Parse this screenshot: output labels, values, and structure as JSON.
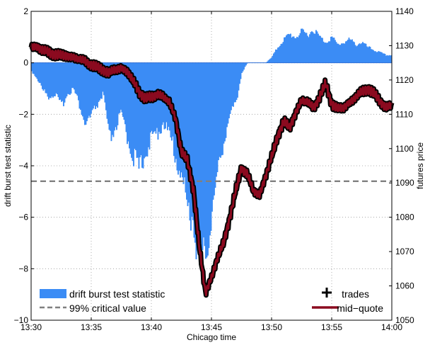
{
  "chart_data": {
    "type": "area",
    "xlabel": "Chicago time",
    "ylabel_left": "drift burst test statistic",
    "ylabel_right": "futures price",
    "x_ticks": [
      "13:30",
      "13:35",
      "13:40",
      "13:45",
      "13:50",
      "13:55",
      "14:00"
    ],
    "x_range_minutes": [
      0,
      30
    ],
    "y_left_ticks": [
      2,
      0,
      -2,
      -4,
      -6,
      -8,
      -10
    ],
    "y_left_range": [
      -10,
      2
    ],
    "y_right_ticks": [
      1140,
      1130,
      1120,
      1110,
      1100,
      1090,
      1080,
      1070,
      1060,
      1050
    ],
    "y_right_range": [
      1050,
      1140
    ],
    "grid": true,
    "legend_left": "bottom-left",
    "legend_right": "bottom-right",
    "critical_value": -4.6,
    "series": [
      {
        "name": "drift burst test statistic",
        "axis": "left",
        "color": "#3b8cf5",
        "x": [
          0,
          0.5,
          1,
          1.5,
          2,
          2.5,
          3,
          3.5,
          4,
          4.5,
          5,
          5.5,
          6,
          6.5,
          7,
          7.5,
          8,
          8.5,
          9,
          9.5,
          10,
          10.5,
          11,
          11.5,
          12,
          12.5,
          13,
          13.5,
          14,
          14.5,
          15,
          15.5,
          16,
          16.5,
          17,
          17.5,
          18,
          18.5,
          19,
          19.5,
          20,
          20.5,
          21,
          21.5,
          22,
          22.5,
          23,
          23.5,
          24,
          24.5,
          25,
          25.5,
          26,
          26.5,
          27,
          27.5,
          28,
          28.5,
          29,
          29.5,
          30
        ],
        "values": [
          -0.3,
          -0.6,
          -1.1,
          -1.3,
          -1.2,
          -1.7,
          -1.2,
          -1.0,
          -1.6,
          -2.4,
          -2.1,
          -1.6,
          -1.2,
          -3.0,
          -2.5,
          -2.0,
          -2.9,
          -3.6,
          -4.2,
          -3.4,
          -3.0,
          -2.7,
          -2.3,
          -2.8,
          -3.6,
          -4.4,
          -5.6,
          -6.1,
          -7.9,
          -7.5,
          -5.9,
          -4.4,
          -3.0,
          -2.1,
          -1.6,
          -0.4,
          0.0,
          0.0,
          0.0,
          0.0,
          0.2,
          0.6,
          0.9,
          1.1,
          1.0,
          1.2,
          1.1,
          1.3,
          1.0,
          0.8,
          1.0,
          0.7,
          0.8,
          0.9,
          0.7,
          0.8,
          0.6,
          0.5,
          0.4,
          0.3,
          0.3
        ]
      },
      {
        "name": "99% critical value",
        "axis": "left",
        "color": "#808080",
        "values": [
          -4.6,
          -4.6
        ]
      },
      {
        "name": "trades",
        "axis": "right",
        "color": "#000000"
      },
      {
        "name": "mid−quote",
        "axis": "right",
        "color": "#8b0a1f",
        "x": [
          0,
          0.5,
          1,
          1.5,
          2,
          2.5,
          3,
          3.5,
          4,
          4.5,
          5,
          5.5,
          6,
          6.5,
          7,
          7.5,
          8,
          8.5,
          9,
          9.5,
          10,
          10.5,
          11,
          11.5,
          12,
          12.5,
          13,
          13.5,
          14,
          14.5,
          15,
          15.5,
          16,
          16.5,
          17,
          17.5,
          18,
          18.5,
          19,
          19.5,
          20,
          20.5,
          21,
          21.5,
          22,
          22.5,
          23,
          23.5,
          24,
          24.5,
          25,
          25.5,
          26,
          26.5,
          27,
          27.5,
          28,
          28.5,
          29,
          29.5,
          30
        ],
        "values": [
          1129.5,
          1129.8,
          1128.5,
          1128.0,
          1127.5,
          1127.0,
          1127.2,
          1126.5,
          1126.0,
          1125.5,
          1124.5,
          1123.5,
          1123.0,
          1122.0,
          1123.0,
          1123.5,
          1122.5,
          1119.5,
          1116.5,
          1114.5,
          1115.0,
          1116.0,
          1115.0,
          1113.5,
          1109.0,
          1099.0,
          1096.5,
          1088.0,
          1071.0,
          1058.0,
          1062.5,
          1068.0,
          1072.5,
          1079.5,
          1087.5,
          1094.5,
          1092.5,
          1087.5,
          1086.5,
          1092.0,
          1097.5,
          1103.5,
          1108.0,
          1106.0,
          1110.5,
          1114.0,
          1113.5,
          1112.0,
          1115.0,
          1119.0,
          1113.0,
          1111.5,
          1112.0,
          1113.5,
          1115.0,
          1116.5,
          1117.5,
          1116.0,
          1114.0,
          1112.0,
          1112.5
        ]
      }
    ]
  }
}
